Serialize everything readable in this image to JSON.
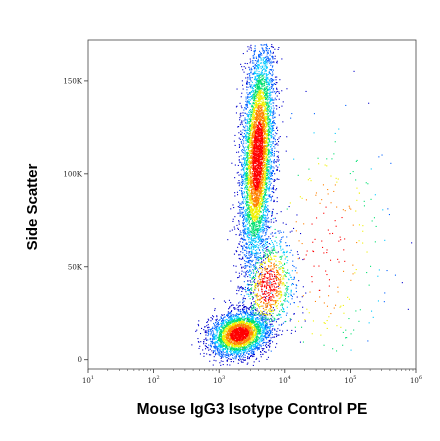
{
  "chart_data": {
    "type": "scatter",
    "title": "",
    "xlabel": "Mouse IgG3 Isotype Control PE",
    "ylabel": "Side Scatter",
    "x_scale": "log",
    "xlim": [
      10,
      1000000
    ],
    "x_ticks": [
      {
        "value": 10,
        "base": "10",
        "exp": "1"
      },
      {
        "value": 100,
        "base": "10",
        "exp": "2"
      },
      {
        "value": 1000,
        "base": "10",
        "exp": "3"
      },
      {
        "value": 10000,
        "base": "10",
        "exp": "4"
      },
      {
        "value": 100000,
        "base": "10",
        "exp": "5"
      },
      {
        "value": 1000000,
        "base": "10",
        "exp": "6"
      }
    ],
    "y_scale": "linear",
    "ylim": [
      -5000,
      172000
    ],
    "y_ticks": [
      {
        "value": 0,
        "label": "0"
      },
      {
        "value": 50000,
        "label": "50K"
      },
      {
        "value": 100000,
        "label": "100K"
      },
      {
        "value": 150000,
        "label": "150K"
      }
    ],
    "grid": false,
    "legend": "none",
    "color_scale": [
      "#0000cc",
      "#0060ff",
      "#00c8ff",
      "#00e070",
      "#f0f000",
      "#ff8000",
      "#ff0000"
    ],
    "populations": [
      {
        "center_log_x": 3.58,
        "center_y": 110000,
        "spread_log_x": 0.12,
        "spread_y": 30000,
        "count": 5200
      },
      {
        "center_log_x": 3.3,
        "center_y": 14000,
        "spread_log_x": 0.22,
        "spread_y": 6000,
        "count": 3000
      },
      {
        "center_log_x": 3.75,
        "center_y": 40000,
        "spread_log_x": 0.2,
        "spread_y": 14000,
        "count": 900
      },
      {
        "center_log_x": 4.6,
        "center_y": 60000,
        "spread_log_x": 0.55,
        "spread_y": 40000,
        "count": 260
      }
    ]
  }
}
